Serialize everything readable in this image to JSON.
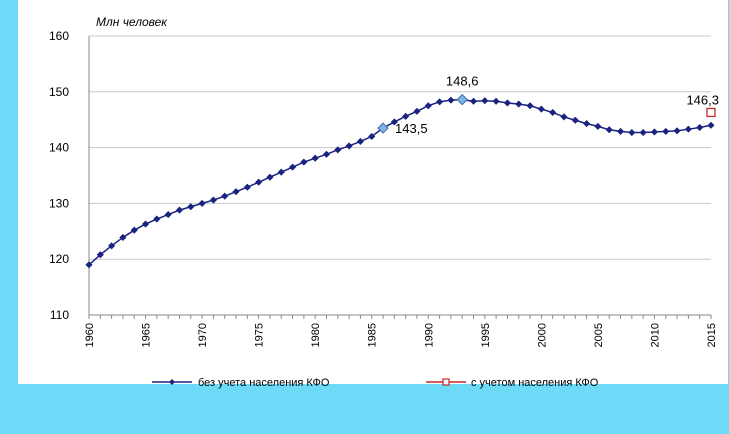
{
  "chart_data": {
    "type": "line",
    "ylabel": "Млн человек",
    "ylim": [
      110,
      160
    ],
    "yticks": [
      110,
      120,
      130,
      140,
      150,
      160
    ],
    "xlim": [
      1960,
      2015
    ],
    "xticks": [
      1960,
      1965,
      1970,
      1975,
      1980,
      1985,
      1990,
      1995,
      2000,
      2005,
      2010,
      2015
    ],
    "grid": "horizontal",
    "legend_position": "bottom",
    "series": [
      {
        "name": "без учета населения КФО",
        "color": "#1a237e",
        "marker": "diamond",
        "x": [
          1960,
          1961,
          1962,
          1963,
          1964,
          1965,
          1966,
          1967,
          1968,
          1969,
          1970,
          1971,
          1972,
          1973,
          1974,
          1975,
          1976,
          1977,
          1978,
          1979,
          1980,
          1981,
          1982,
          1983,
          1984,
          1985,
          1986,
          1987,
          1988,
          1989,
          1990,
          1991,
          1992,
          1993,
          1994,
          1995,
          1996,
          1997,
          1998,
          1999,
          2000,
          2001,
          2002,
          2003,
          2004,
          2005,
          2006,
          2007,
          2008,
          2009,
          2010,
          2011,
          2012,
          2013,
          2014,
          2015
        ],
        "y": [
          119.0,
          120.8,
          122.4,
          123.9,
          125.2,
          126.3,
          127.2,
          128.0,
          128.8,
          129.4,
          130.0,
          130.6,
          131.3,
          132.1,
          132.9,
          133.8,
          134.7,
          135.6,
          136.5,
          137.4,
          138.1,
          138.8,
          139.6,
          140.3,
          141.1,
          142.0,
          143.5,
          144.6,
          145.6,
          146.5,
          147.5,
          148.2,
          148.5,
          148.6,
          148.3,
          148.4,
          148.3,
          148.0,
          147.8,
          147.5,
          146.9,
          146.3,
          145.5,
          144.9,
          144.3,
          143.8,
          143.2,
          142.9,
          142.7,
          142.7,
          142.8,
          142.9,
          143.0,
          143.3,
          143.6,
          144.0
        ]
      },
      {
        "name": "с учетом населения КФО",
        "color": "#c62828",
        "marker": "square-open",
        "x": [
          2015
        ],
        "y": [
          146.3
        ]
      }
    ],
    "highlighted_points": [
      {
        "x": 1986,
        "y": 143.5,
        "label": "143,5"
      },
      {
        "x": 1993,
        "y": 148.6,
        "label": "148,6"
      }
    ],
    "data_labels": [
      {
        "x": 2015,
        "y": 146.3,
        "label": "146,3"
      }
    ],
    "highlight_color": "#7fb2e5"
  }
}
